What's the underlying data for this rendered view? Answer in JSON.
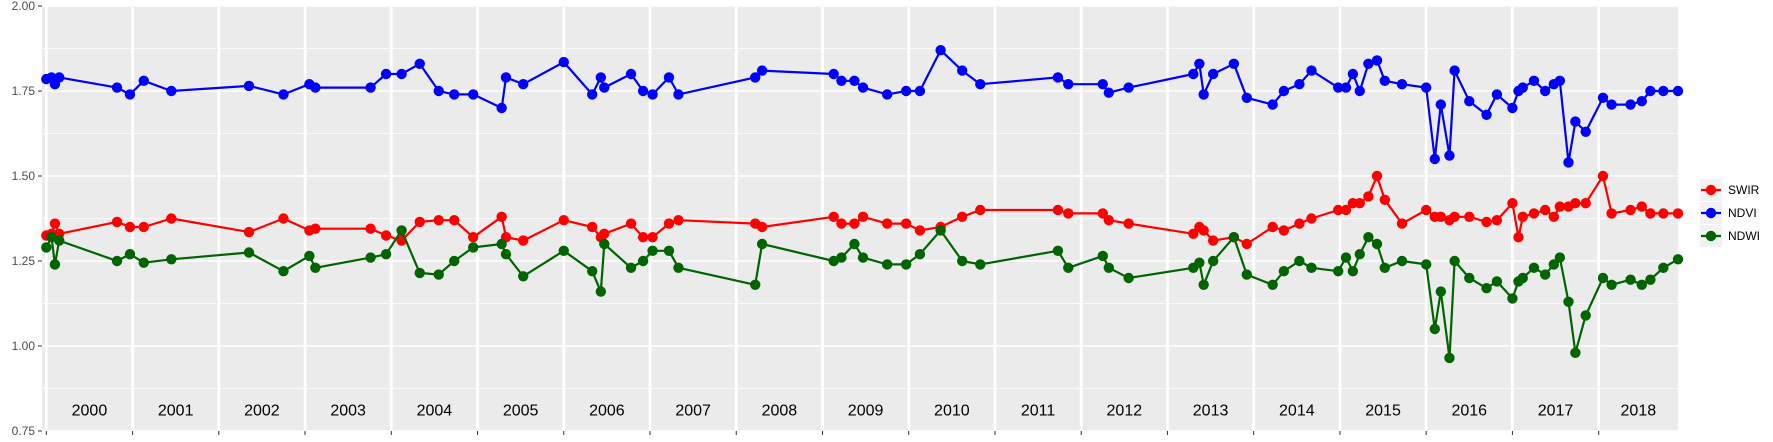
{
  "chart_data": {
    "type": "line",
    "title": "",
    "xlabel": "",
    "ylabel": "",
    "x_range": [
      1999.95,
      2018.92
    ],
    "ylim": [
      0.75,
      2.0
    ],
    "y_ticks": [
      0.75,
      1.0,
      1.25,
      1.5,
      1.75,
      2.0
    ],
    "y_tick_labels": [
      "0.75",
      "1.00",
      "1.25",
      "1.50",
      "1.75",
      "2.00"
    ],
    "year_boundaries": [
      2000,
      2001,
      2002,
      2003,
      2004,
      2005,
      2006,
      2007,
      2008,
      2009,
      2010,
      2011,
      2012,
      2013,
      2014,
      2015,
      2016,
      2017,
      2018,
      2019
    ],
    "year_labels": [
      "2000",
      "2001",
      "2002",
      "2003",
      "2004",
      "2005",
      "2006",
      "2007",
      "2008",
      "2009",
      "2010",
      "2011",
      "2012",
      "2013",
      "2014",
      "2015",
      "2016",
      "2017",
      "2018"
    ],
    "grid": true,
    "legend_position": "right",
    "colors": {
      "panel": "#ebebeb",
      "grid": "#ffffff",
      "tick": "#333333"
    },
    "x": [
      2000.0,
      2000.06,
      2000.1,
      2000.15,
      2000.82,
      2000.97,
      2001.13,
      2001.45,
      2002.35,
      2002.75,
      2003.05,
      2003.12,
      2003.76,
      2003.94,
      2004.12,
      2004.33,
      2004.55,
      2004.73,
      2004.95,
      2005.28,
      2005.33,
      2005.53,
      2006.0,
      2006.33,
      2006.43,
      2006.47,
      2006.78,
      2006.92,
      2007.03,
      2007.22,
      2007.33,
      2008.22,
      2008.3,
      2009.13,
      2009.22,
      2009.37,
      2009.47,
      2009.75,
      2009.97,
      2010.13,
      2010.37,
      2010.62,
      2010.83,
      2011.73,
      2011.85,
      2012.25,
      2012.32,
      2012.55,
      2013.3,
      2013.37,
      2013.42,
      2013.53,
      2013.77,
      2013.92,
      2014.22,
      2014.35,
      2014.53,
      2014.67,
      2014.98,
      2015.07,
      2015.15,
      2015.23,
      2015.33,
      2015.43,
      2015.52,
      2015.72,
      2016.0,
      2016.1,
      2016.17,
      2016.27,
      2016.33,
      2016.5,
      2016.7,
      2016.82,
      2017.0,
      2017.07,
      2017.12,
      2017.25,
      2017.38,
      2017.48,
      2017.55,
      2017.65,
      2017.73,
      2017.85,
      2018.05,
      2018.15,
      2018.37,
      2018.5,
      2018.6,
      2018.75,
      2018.92
    ],
    "series": [
      {
        "name": "SWIR",
        "color": "#ff0000",
        "values": [
          1.325,
          1.33,
          1.36,
          1.33,
          1.365,
          1.35,
          1.35,
          1.375,
          1.335,
          1.375,
          1.34,
          1.345,
          1.345,
          1.325,
          1.31,
          1.365,
          1.37,
          1.37,
          1.32,
          1.38,
          1.32,
          1.31,
          1.37,
          1.35,
          1.32,
          1.33,
          1.36,
          1.32,
          1.32,
          1.36,
          1.37,
          1.36,
          1.35,
          1.38,
          1.36,
          1.36,
          1.38,
          1.36,
          1.36,
          1.34,
          1.35,
          1.38,
          1.4,
          1.4,
          1.39,
          1.39,
          1.37,
          1.36,
          1.33,
          1.35,
          1.34,
          1.31,
          1.32,
          1.3,
          1.35,
          1.34,
          1.36,
          1.375,
          1.4,
          1.4,
          1.42,
          1.42,
          1.44,
          1.5,
          1.43,
          1.36,
          1.4,
          1.38,
          1.38,
          1.37,
          1.38,
          1.38,
          1.365,
          1.37,
          1.42,
          1.32,
          1.38,
          1.39,
          1.4,
          1.38,
          1.41,
          1.41,
          1.42,
          1.42,
          1.5,
          1.39,
          1.4,
          1.41,
          1.39,
          1.39,
          1.39
        ]
      },
      {
        "name": "NDVI",
        "color": "#0000ff",
        "values": [
          1.785,
          1.79,
          1.77,
          1.79,
          1.76,
          1.74,
          1.78,
          1.75,
          1.765,
          1.74,
          1.77,
          1.76,
          1.76,
          1.8,
          1.8,
          1.83,
          1.75,
          1.74,
          1.74,
          1.7,
          1.79,
          1.77,
          1.835,
          1.74,
          1.79,
          1.76,
          1.8,
          1.75,
          1.74,
          1.79,
          1.74,
          1.79,
          1.81,
          1.8,
          1.78,
          1.78,
          1.76,
          1.74,
          1.75,
          1.75,
          1.87,
          1.81,
          1.77,
          1.79,
          1.77,
          1.77,
          1.745,
          1.76,
          1.8,
          1.83,
          1.74,
          1.8,
          1.83,
          1.73,
          1.71,
          1.75,
          1.77,
          1.81,
          1.76,
          1.76,
          1.8,
          1.75,
          1.83,
          1.84,
          1.78,
          1.77,
          1.76,
          1.55,
          1.71,
          1.56,
          1.81,
          1.72,
          1.68,
          1.74,
          1.7,
          1.75,
          1.76,
          1.78,
          1.75,
          1.77,
          1.78,
          1.54,
          1.66,
          1.63,
          1.73,
          1.71,
          1.71,
          1.72,
          1.75,
          1.75,
          1.75
        ]
      },
      {
        "name": "NDWI",
        "color": "#006400",
        "values": [
          1.29,
          1.32,
          1.24,
          1.31,
          1.25,
          1.27,
          1.245,
          1.255,
          1.275,
          1.22,
          1.265,
          1.23,
          1.26,
          1.27,
          1.34,
          1.215,
          1.21,
          1.25,
          1.29,
          1.3,
          1.27,
          1.205,
          1.28,
          1.22,
          1.16,
          1.3,
          1.23,
          1.25,
          1.28,
          1.28,
          1.23,
          1.18,
          1.3,
          1.25,
          1.26,
          1.3,
          1.26,
          1.24,
          1.24,
          1.27,
          1.34,
          1.25,
          1.24,
          1.28,
          1.23,
          1.265,
          1.23,
          1.2,
          1.23,
          1.245,
          1.18,
          1.25,
          1.32,
          1.21,
          1.18,
          1.22,
          1.25,
          1.23,
          1.22,
          1.26,
          1.22,
          1.27,
          1.32,
          1.3,
          1.23,
          1.25,
          1.24,
          1.05,
          1.16,
          0.965,
          1.25,
          1.2,
          1.17,
          1.19,
          1.14,
          1.19,
          1.2,
          1.23,
          1.21,
          1.24,
          1.26,
          1.13,
          0.98,
          1.09,
          1.2,
          1.18,
          1.195,
          1.18,
          1.195,
          1.23,
          1.255
        ]
      }
    ]
  }
}
